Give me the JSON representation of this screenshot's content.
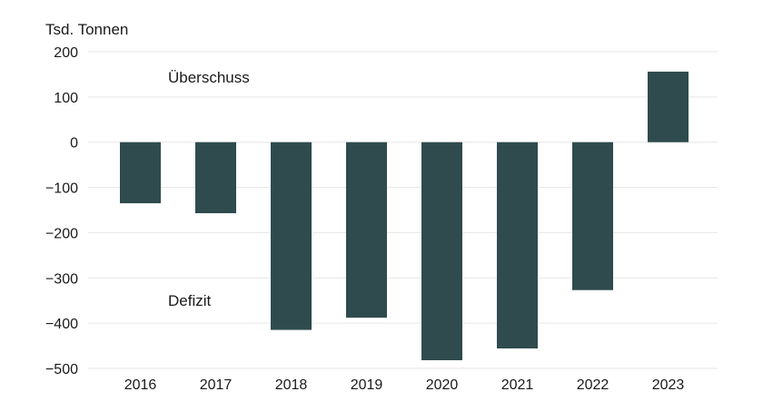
{
  "chart_data": {
    "type": "bar",
    "ylabel": "Tsd. Tonnen",
    "categories": [
      "2016",
      "2017",
      "2018",
      "2019",
      "2020",
      "2021",
      "2022",
      "2023"
    ],
    "values": [
      -135,
      -157,
      -415,
      -388,
      -482,
      -456,
      -327,
      156
    ],
    "ylim": [
      -500,
      200
    ],
    "yticks": [
      200,
      100,
      0,
      -100,
      -200,
      -300,
      -400,
      -500
    ],
    "ytick_labels": [
      "200",
      "100",
      "0",
      "−100",
      "−200",
      "−300",
      "−400",
      "−500"
    ],
    "annotations": {
      "surplus": "Überschuss",
      "deficit": "Defizit"
    },
    "grid": true,
    "bar_color": "#2f4b4e",
    "grid_color": "#e6e6e6"
  }
}
